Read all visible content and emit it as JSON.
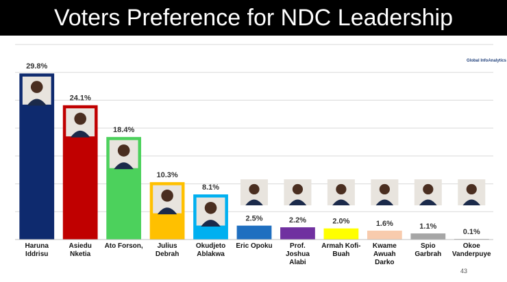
{
  "chart_data": {
    "type": "bar",
    "title": "Voters Preference for NDC Leadership",
    "categories": [
      "Haruna Iddrisu",
      "Asiedu Nketia",
      "Ato Forson,",
      "Julius Debrah",
      "Okudjeto Ablakwa",
      "Eric Opoku",
      "Prof. Joshua Alabi",
      "Armah Kofi-Buah",
      "Kwame Awuah Darko",
      "Spio Garbrah",
      "Okoe Vanderpuye"
    ],
    "values": [
      29.8,
      24.1,
      18.4,
      10.3,
      8.1,
      2.5,
      2.2,
      2.0,
      1.6,
      1.1,
      0.1
    ],
    "value_labels": [
      "29.8%",
      "24.1%",
      "18.4%",
      "10.3%",
      "8.1%",
      "2.5%",
      "2.2%",
      "2.0%",
      "1.6%",
      "1.1%",
      "0.1%"
    ],
    "colors": [
      "#0e2a6e",
      "#c00000",
      "#4cd15c",
      "#ffc000",
      "#00b0f0",
      "#1f6fc0",
      "#7030a0",
      "#ffff00",
      "#f8cbad",
      "#a6a6a6",
      "#7f7f7f"
    ],
    "ylim": [
      0,
      35
    ],
    "yticks": [
      0,
      5,
      10,
      15,
      20,
      25,
      30,
      35
    ],
    "grid": true
  },
  "logo_text": "Global InfoAnalytics",
  "slide_number": "43"
}
